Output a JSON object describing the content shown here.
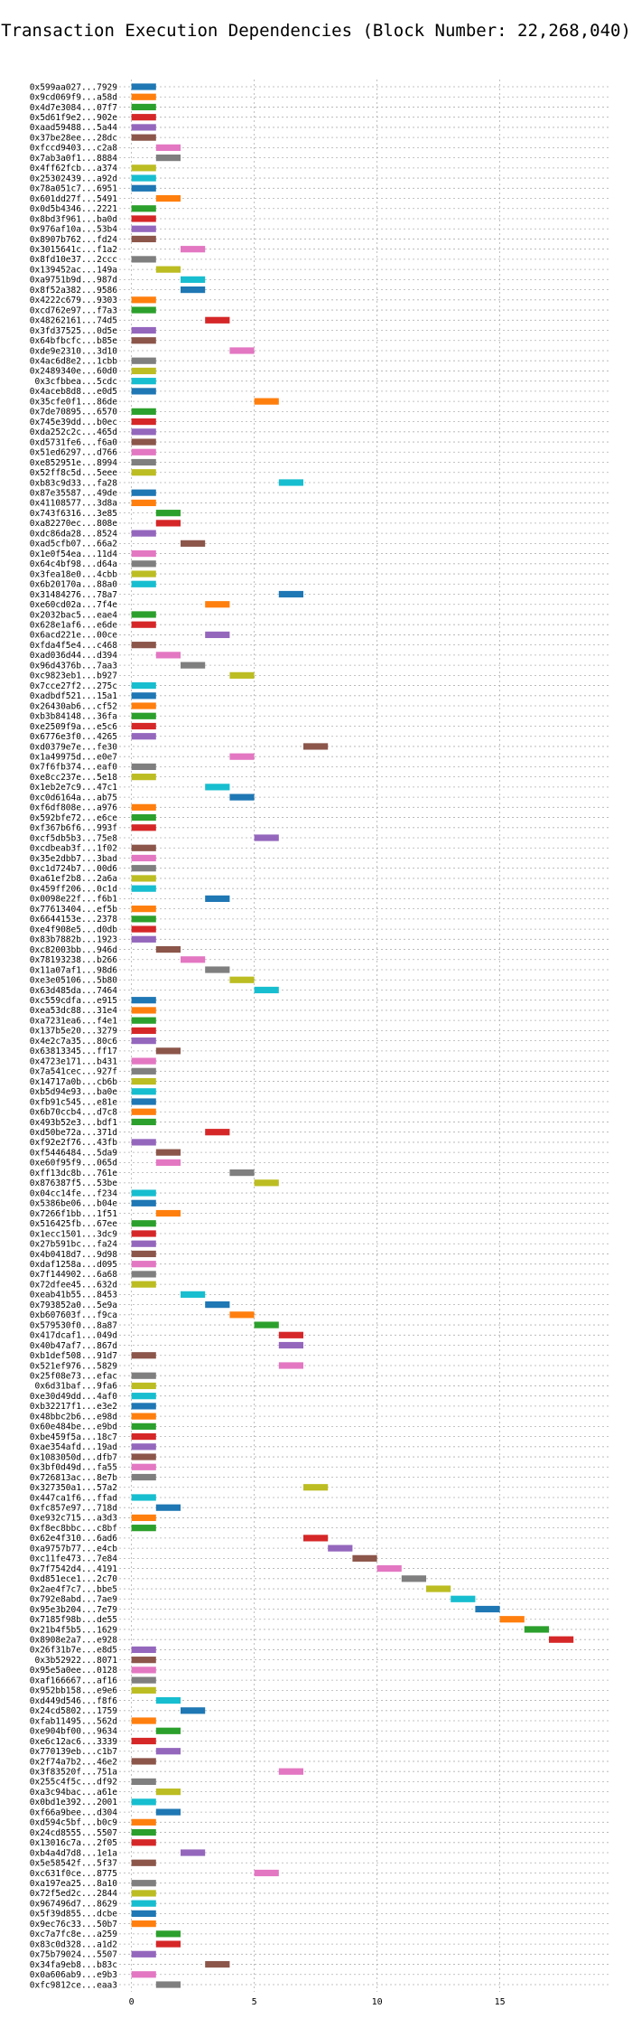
{
  "chart_data": {
    "type": "bar",
    "orientation": "horizontal-gantt",
    "title": "Transaction Execution Dependencies (Block Number: 22,268,040)",
    "xlabel": "",
    "ylabel": "",
    "xlim": [
      -0.5,
      19.5
    ],
    "xticks": [
      0,
      5,
      10,
      15
    ],
    "grid": true,
    "bar_duration": 1,
    "colors": [
      "#1f77b4",
      "#ff7f0e",
      "#2ca02c",
      "#d62728",
      "#9467bd",
      "#8c564b",
      "#e377c2",
      "#7f7f7f",
      "#bcbd22",
      "#17becf"
    ],
    "transactions": [
      [
        "0x599aa027...7929",
        0
      ],
      [
        "0x9cd069f9...a58d",
        0
      ],
      [
        "0x4d7e3084...07f7",
        0
      ],
      [
        "0x5d61f9e2...902e",
        0
      ],
      [
        "0xaad59488...5a44",
        0
      ],
      [
        "0x37be28ee...28dc",
        0
      ],
      [
        "0xfccd9403...c2a8",
        1
      ],
      [
        "0x7ab3a0f1...8884",
        1
      ],
      [
        "0x4ff62fcb...a374",
        0
      ],
      [
        "0x25302439...a92d",
        0
      ],
      [
        "0x78a051c7...6951",
        0
      ],
      [
        "0x601dd27f...5491",
        1
      ],
      [
        "0x0d5b4346...2221",
        0
      ],
      [
        "0x8bd3f961...ba0d",
        0
      ],
      [
        "0x976af10a...53b4",
        0
      ],
      [
        "0x8907b762...fd24",
        0
      ],
      [
        "0x3015641c...f1a2",
        2
      ],
      [
        "0x8fd10e37...2ccc",
        0
      ],
      [
        "0x139452ac...149a",
        1
      ],
      [
        "0xa9751b9d...987d",
        2
      ],
      [
        "0x8f52a382...9586",
        2
      ],
      [
        "0x4222c679...9303",
        0
      ],
      [
        "0xcd762e97...f7a3",
        0
      ],
      [
        "0x48262161...74d5",
        3
      ],
      [
        "0x3fd37525...0d5e",
        0
      ],
      [
        "0x64bfbcfc...b85e",
        0
      ],
      [
        "0xde9e2310...3d10",
        4
      ],
      [
        "0x4ac6d8e2...1cbb",
        0
      ],
      [
        "0x2489340e...60d0",
        0
      ],
      [
        "0x3cfbbea...5cdc",
        0
      ],
      [
        "0x4aceb8d8...e0d5",
        0
      ],
      [
        "0x35cfe0f1...86de",
        5
      ],
      [
        "0x7de70895...6570",
        0
      ],
      [
        "0x745e39dd...b0ec",
        0
      ],
      [
        "0xda252c2c...465d",
        0
      ],
      [
        "0xd5731fe6...f6a0",
        0
      ],
      [
        "0x51ed6297...d766",
        0
      ],
      [
        "0xe852951e...8994",
        0
      ],
      [
        "0x52ff8c5d...5eee",
        0
      ],
      [
        "0xb83c9d33...fa28",
        6
      ],
      [
        "0x87e35587...49de",
        0
      ],
      [
        "0x41108577...3d8a",
        0
      ],
      [
        "0x743f6316...3e85",
        1
      ],
      [
        "0xa82270ec...808e",
        1
      ],
      [
        "0xdc86da28...8524",
        0
      ],
      [
        "0xad5cfb07...66a2",
        2
      ],
      [
        "0x1e0f54ea...11d4",
        0
      ],
      [
        "0x64c4bf98...d64a",
        0
      ],
      [
        "0x3fea18e0...4cbb",
        0
      ],
      [
        "0x6b20170a...88a0",
        0
      ],
      [
        "0x31484276...78a7",
        6
      ],
      [
        "0xe60cd02a...7f4e",
        3
      ],
      [
        "0x2032bac5...eae4",
        0
      ],
      [
        "0x628e1af6...e6de",
        0
      ],
      [
        "0x6acd221e...00ce",
        3
      ],
      [
        "0xfda4f5e4...c468",
        0
      ],
      [
        "0xad036d44...d394",
        1
      ],
      [
        "0x96d4376b...7aa3",
        2
      ],
      [
        "0xc9823eb1...b927",
        4
      ],
      [
        "0x7cce27f2...275c",
        0
      ],
      [
        "0xadbdf521...15a1",
        0
      ],
      [
        "0x26430ab6...cf52",
        0
      ],
      [
        "0xb3b84148...36fa",
        0
      ],
      [
        "0xe2509f9a...e5c6",
        0
      ],
      [
        "0x6776e3f0...4265",
        0
      ],
      [
        "0xd0379e7e...fe30",
        7
      ],
      [
        "0x1a49975d...e0e7",
        4
      ],
      [
        "0x7f6fb374...eaf0",
        0
      ],
      [
        "0xe8cc237e...5e18",
        0
      ],
      [
        "0x1eb2e7c9...47c1",
        3
      ],
      [
        "0xc0d6164a...ab75",
        4
      ],
      [
        "0xf6df808e...a976",
        0
      ],
      [
        "0x592bfe72...e6ce",
        0
      ],
      [
        "0xf367b6f6...993f",
        0
      ],
      [
        "0xcf5db5b3...75e8",
        5
      ],
      [
        "0xcdbeab3f...1f02",
        0
      ],
      [
        "0x35e2dbb7...3bad",
        0
      ],
      [
        "0xc1d724b7...00d6",
        0
      ],
      [
        "0xa61ef2b8...2a6a",
        0
      ],
      [
        "0x459ff206...0c1d",
        0
      ],
      [
        "0x0098e22f...f6b1",
        3
      ],
      [
        "0x77613404...ef5b",
        0
      ],
      [
        "0x6644153e...2378",
        0
      ],
      [
        "0xe4f908e5...d0db",
        0
      ],
      [
        "0x83b7882b...1923",
        0
      ],
      [
        "0xc82003bb...946d",
        1
      ],
      [
        "0x78193238...b266",
        2
      ],
      [
        "0x11a07af1...98d6",
        3
      ],
      [
        "0xe3e05106...5b80",
        4
      ],
      [
        "0x63d485da...7464",
        5
      ],
      [
        "0xc559cdfa...e915",
        0
      ],
      [
        "0xea53dc88...31e4",
        0
      ],
      [
        "0xa7231ea6...f4e1",
        0
      ],
      [
        "0x137b5e20...3279",
        0
      ],
      [
        "0x4e2c7a35...80c6",
        0
      ],
      [
        "0x63813345...ff17",
        1
      ],
      [
        "0x4723e171...b431",
        0
      ],
      [
        "0x7a541cec...927f",
        0
      ],
      [
        "0x14717a0b...cb6b",
        0
      ],
      [
        "0xb5d94e93...ba0e",
        0
      ],
      [
        "0xfb91c545...e81e",
        0
      ],
      [
        "0x6b70ccb4...d7c8",
        0
      ],
      [
        "0x493b52e3...bdf1",
        0
      ],
      [
        "0xd50be72a...371d",
        3
      ],
      [
        "0xf92e2f76...43fb",
        0
      ],
      [
        "0xf5446484...5da9",
        1
      ],
      [
        "0xe60f95f9...065d",
        1
      ],
      [
        "0xff13dc8b...761e",
        4
      ],
      [
        "0x876387f5...53be",
        5
      ],
      [
        "0x04cc14fe...f234",
        0
      ],
      [
        "0x5386be06...b04e",
        0
      ],
      [
        "0x7266f1bb...1f51",
        1
      ],
      [
        "0x516425fb...67ee",
        0
      ],
      [
        "0x1ecc1501...3dc9",
        0
      ],
      [
        "0x27b591bc...fa24",
        0
      ],
      [
        "0x4b0418d7...9d98",
        0
      ],
      [
        "0xdaf1258a...d095",
        0
      ],
      [
        "0x7f144902...6a68",
        0
      ],
      [
        "0x72dfee45...632d",
        0
      ],
      [
        "0xeab41b55...8453",
        2
      ],
      [
        "0x793852a0...5e9a",
        3
      ],
      [
        "0xb607603f...f9ca",
        4
      ],
      [
        "0x579530f0...8a87",
        5
      ],
      [
        "0x417dcaf1...049d",
        6
      ],
      [
        "0x40b47af7...867d",
        6
      ],
      [
        "0xb1def508...91d7",
        0
      ],
      [
        "0x521ef976...5829",
        6
      ],
      [
        "0x25f08e73...efac",
        0
      ],
      [
        "0x6d31baf...9fa6",
        0
      ],
      [
        "0xe30d49dd...4af0",
        0
      ],
      [
        "0xb32217f1...e3e2",
        0
      ],
      [
        "0x48bbc2b6...e98d",
        0
      ],
      [
        "0x60e484be...e9bd",
        0
      ],
      [
        "0xbe459f5a...18c7",
        0
      ],
      [
        "0xae354afd...19ad",
        0
      ],
      [
        "0x1083050d...dfb7",
        0
      ],
      [
        "0x3bf0d49d...fa55",
        0
      ],
      [
        "0x726813ac...8e7b",
        0
      ],
      [
        "0x327350a1...57a2",
        7
      ],
      [
        "0x447ca1f6...ffad",
        0
      ],
      [
        "0xfc857e97...718d",
        1
      ],
      [
        "0xe932c715...a3d3",
        0
      ],
      [
        "0xf8ec8bbc...c8bf",
        0
      ],
      [
        "0x62e4f310...6ad6",
        7
      ],
      [
        "0xa9757b77...e4cb",
        8
      ],
      [
        "0xc11fe473...7e84",
        9
      ],
      [
        "0x7f7542d4...4191",
        10
      ],
      [
        "0xd851ece1...2c70",
        11
      ],
      [
        "0x2ae4f7c7...bbe5",
        12
      ],
      [
        "0x792e8abd...7ae9",
        13
      ],
      [
        "0x95e3b204...7e79",
        14
      ],
      [
        "0x7185f98b...de55",
        15
      ],
      [
        "0x21b4f5b5...1629",
        16
      ],
      [
        "0x8908e2a7...e928",
        17
      ],
      [
        "0x26f31b7e...e8d5",
        0
      ],
      [
        "0x3b52922...8071",
        0
      ],
      [
        "0x95e5a0ee...0128",
        0
      ],
      [
        "0xaf166667...af16",
        0
      ],
      [
        "0x952bb158...e9e6",
        0
      ],
      [
        "0xd449d546...f8f6",
        1
      ],
      [
        "0x24cd5802...1759",
        2
      ],
      [
        "0xfab11495...562d",
        0
      ],
      [
        "0xe904bf00...9634",
        1
      ],
      [
        "0xe6c12ac6...3339",
        0
      ],
      [
        "0x770139eb...c1b7",
        1
      ],
      [
        "0x2f74a7b2...46e2",
        0
      ],
      [
        "0x3f83520f...751a",
        6
      ],
      [
        "0x255c4f5c...df92",
        0
      ],
      [
        "0xa3c94bac...a61e",
        1
      ],
      [
        "0x0bd1e392...2001",
        0
      ],
      [
        "0xf66a9bee...d304",
        1
      ],
      [
        "0xd594c5bf...b0c9",
        0
      ],
      [
        "0x24cd8555...5507",
        0
      ],
      [
        "0x13016c7a...2f05",
        0
      ],
      [
        "0xb4a4d7d8...1e1a",
        2
      ],
      [
        "0x5e58542f...5f37",
        0
      ],
      [
        "0xc631f0ce...8775",
        5
      ],
      [
        "0xa197ea25...8a10",
        0
      ],
      [
        "0x72f5ed2c...2844",
        0
      ],
      [
        "0x967496d7...8629",
        0
      ],
      [
        "0x5f39d855...dcbe",
        0
      ],
      [
        "0x9ec76c33...50b7",
        0
      ],
      [
        "0xc7a7fc8e...a259",
        1
      ],
      [
        "0x83c0d328...a1d2",
        1
      ],
      [
        "0x75b79024...5507",
        0
      ],
      [
        "0x34fa9eb8...b83c",
        3
      ],
      [
        "0x0a606ab9...e9b3",
        0
      ],
      [
        "0xfc9812ce...eaa3",
        1
      ]
    ]
  }
}
